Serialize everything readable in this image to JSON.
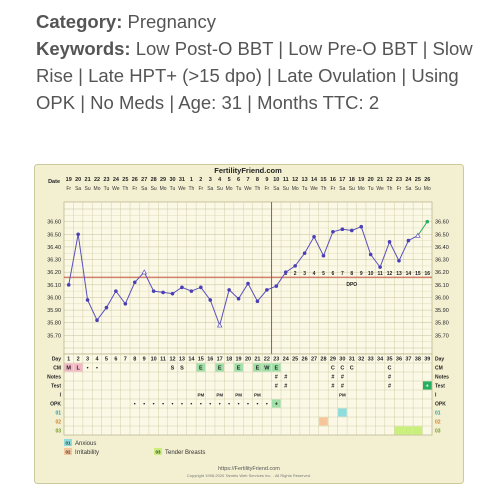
{
  "header": {
    "category_label": "Category:",
    "category_value": "Pregnancy",
    "keywords_label": "Keywords:",
    "keywords_value": "Low Post-O BBT | Low Pre-O BBT | Slow Rise | Late HPT+ (>15 dpo) | Late Ovulation | Using OPK | No Meds | Age: 31 | Months TTC: 2"
  },
  "chart_data": {
    "type": "line",
    "title": "FertilityFriend.com",
    "footer_url": "https://FertilityFriend.com",
    "footer_copyright": "Copyright 1998-2020 Tamtris Web Services Inc. - All Rights Reserved.",
    "row_labels": {
      "date": "Date",
      "day": "Day",
      "cm": "CM",
      "notes": "Notes",
      "test": "Test",
      "i": "I",
      "opk": "OPK",
      "c01": "01",
      "c02": "02",
      "c03": "03"
    },
    "dates": [
      "19",
      "20",
      "21",
      "22",
      "23",
      "24",
      "25",
      "26",
      "27",
      "28",
      "29",
      "30",
      "31",
      "1",
      "2",
      "3",
      "4",
      "5",
      "6",
      "7",
      "8",
      "9",
      "10",
      "11",
      "12",
      "13",
      "14",
      "15",
      "16",
      "17",
      "18",
      "19",
      "20",
      "21",
      "22",
      "23",
      "24",
      "25",
      "26"
    ],
    "weekdays": [
      "Fr",
      "Sa",
      "Su",
      "Mo",
      "Tu",
      "We",
      "Th",
      "Fr",
      "Sa",
      "Su",
      "Mo",
      "Tu",
      "We",
      "Th",
      "Fr",
      "Sa",
      "Su",
      "Mo",
      "Tu",
      "We",
      "Th",
      "Fr",
      "Sa",
      "Su",
      "Mo",
      "Tu",
      "We",
      "Th",
      "Fr",
      "Sa",
      "Su",
      "Mo",
      "Tu",
      "We",
      "Th",
      "Fr",
      "Sa",
      "Su",
      "Mo"
    ],
    "days": [
      "1",
      "2",
      "3",
      "4",
      "5",
      "6",
      "7",
      "8",
      "9",
      "10",
      "11",
      "12",
      "13",
      "14",
      "15",
      "16",
      "17",
      "18",
      "19",
      "20",
      "21",
      "22",
      "23",
      "24",
      "25",
      "26",
      "27",
      "28",
      "29",
      "30",
      "31",
      "32",
      "33",
      "34",
      "35",
      "36",
      "37",
      "38",
      "39"
    ],
    "ylim": [
      35.6,
      36.7
    ],
    "y_ticks": [
      "36.60",
      "36.50",
      "36.40",
      "36.30",
      "36.20",
      "36.10",
      "36.00",
      "35.90",
      "35.80",
      "35.70"
    ],
    "temps": [
      36.1,
      36.5,
      35.98,
      35.82,
      35.92,
      36.05,
      35.95,
      36.12,
      36.2,
      36.05,
      36.04,
      36.03,
      36.08,
      36.05,
      36.08,
      35.98,
      35.78,
      36.06,
      35.99,
      36.11,
      35.97,
      36.06,
      36.09,
      36.2,
      36.25,
      36.35,
      36.48,
      36.33,
      36.52,
      36.54,
      36.53,
      36.56,
      36.34,
      36.24,
      36.44,
      36.29,
      36.45,
      36.49,
      36.6
    ],
    "open_circles": [
      8,
      16,
      37
    ],
    "green_last": true,
    "coverline": 36.16,
    "ovulation_day_index": 22,
    "dpo_labels": [
      "1",
      "2",
      "3",
      "4",
      "5",
      "6",
      "7",
      "8",
      "9",
      "10",
      "11",
      "12",
      "13",
      "14",
      "15",
      "16"
    ],
    "dpo_text": "DPO",
    "cm": {
      "0": "M",
      "1": "L",
      "2": "•",
      "3": "•",
      "11": "S",
      "12": "S",
      "14": "E",
      "16": "E",
      "18": "E",
      "20": "E",
      "21": "W",
      "22": "E",
      "28": "C",
      "29": "C",
      "30": "C",
      "34": "C"
    },
    "cm_colors": {
      "0": "#f2b8c6",
      "1": "#f2b8c6"
    },
    "notes_marks": {
      "22": "#",
      "23": "#",
      "28": "#",
      "29": "#",
      "34": "#"
    },
    "test_marks": {
      "22": "#",
      "23": "#",
      "28": "#",
      "29": "#",
      "34": "#",
      "38": "+"
    },
    "i_marks": {
      "14": "PM",
      "16": "PM",
      "18": "PM",
      "20": "PM",
      "29": "PM"
    },
    "opk": {
      "7": "•",
      "8": "•",
      "9": "•",
      "10": "•",
      "11": "•",
      "12": "•",
      "13": "•",
      "14": "•",
      "15": "•",
      "16": "•",
      "17": "•",
      "18": "•",
      "19": "•",
      "20": "•",
      "21": "•",
      "22": "+"
    },
    "c01_cells": [
      29
    ],
    "c02_cells": [
      27
    ],
    "c03_cells": [
      35,
      36,
      37
    ],
    "legend": [
      {
        "code": "01",
        "label": "Anxious",
        "color": "#8fdcdc"
      },
      {
        "code": "02",
        "label": "Irritability",
        "color": "#f7c59a"
      },
      {
        "code": "03",
        "label": "Tender Breasts",
        "color": "#c8f07a"
      }
    ]
  }
}
